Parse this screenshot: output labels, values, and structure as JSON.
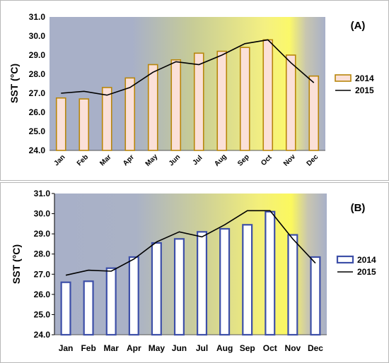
{
  "chart_data": [
    {
      "type": "bar",
      "panel_label": "(A)",
      "ylabel": "SST (°C)",
      "ylim": [
        24.0,
        31.0
      ],
      "y_ticks": [
        "24.0",
        "25.0",
        "26.0",
        "27.0",
        "28.0",
        "29.0",
        "30.0",
        "31.0"
      ],
      "categories": [
        "Jan",
        "Feb",
        "Mar",
        "Apr",
        "May",
        "Jun",
        "Jul",
        "Aug",
        "Sep",
        "Oct",
        "Nov",
        "Dec"
      ],
      "series": [
        {
          "name": "2014",
          "kind": "bar",
          "color": "#b8860b",
          "fill": "#fbe0d8",
          "values": [
            26.75,
            26.7,
            27.3,
            27.8,
            28.5,
            28.75,
            29.1,
            29.2,
            29.4,
            29.8,
            29.0,
            27.9
          ]
        },
        {
          "name": "2015",
          "kind": "line",
          "color": "#000000",
          "values": [
            27.0,
            27.1,
            26.9,
            27.3,
            28.1,
            28.65,
            28.5,
            29.0,
            29.6,
            29.8,
            28.6,
            27.55
          ]
        }
      ],
      "grid": false,
      "legend_position": "right"
    },
    {
      "type": "bar",
      "panel_label": "(B)",
      "ylabel": "SST (°C)",
      "ylim": [
        24.0,
        31.0
      ],
      "y_ticks": [
        "24.0",
        "25.0",
        "26.0",
        "27.0",
        "28.0",
        "29.0",
        "30.0",
        "31.0"
      ],
      "categories": [
        "Jan",
        "Feb",
        "Mar",
        "Apr",
        "May",
        "Jun",
        "Jul",
        "Aug",
        "Sep",
        "Oct",
        "Nov",
        "Dec"
      ],
      "series": [
        {
          "name": "2014",
          "kind": "bar",
          "color": "#3d4fa8",
          "fill": "#ffffff",
          "values": [
            26.6,
            26.65,
            27.3,
            27.85,
            28.55,
            28.75,
            29.1,
            29.25,
            29.45,
            30.1,
            28.95,
            27.85
          ]
        },
        {
          "name": "2015",
          "kind": "line",
          "color": "#000000",
          "values": [
            26.95,
            27.2,
            27.15,
            27.75,
            28.6,
            29.1,
            28.85,
            29.45,
            30.15,
            30.15,
            28.75,
            27.55
          ]
        }
      ],
      "grid": false,
      "legend_position": "right"
    }
  ]
}
